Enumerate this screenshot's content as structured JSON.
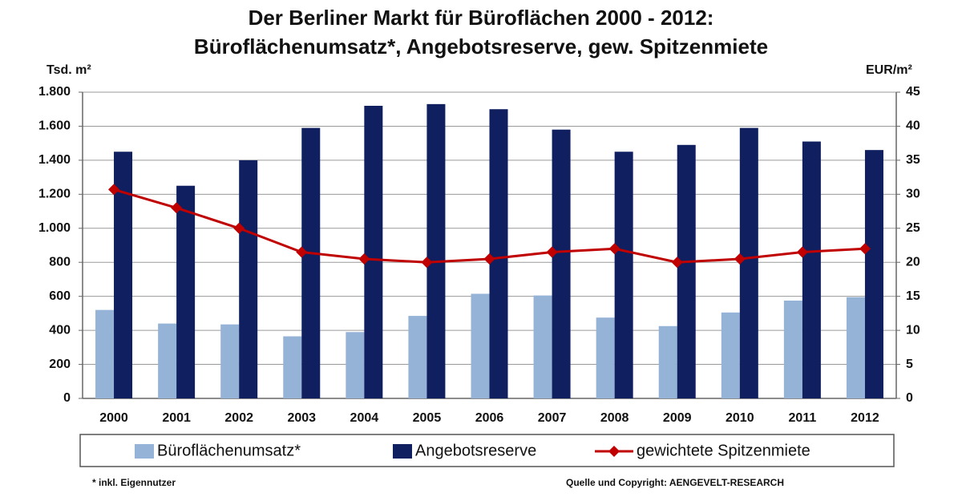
{
  "chart_data": {
    "type": "bar",
    "title": "Der Berliner Markt für Büroflächen 2000 - 2012:",
    "subtitle": "Büroflächenumsatz*, Angebotsreserve, gew. Spitzenmiete",
    "y_label": "Tsd. m²",
    "y2_label": "EUR/m²",
    "categories": [
      "2000",
      "2001",
      "2002",
      "2003",
      "2004",
      "2005",
      "2006",
      "2007",
      "2008",
      "2009",
      "2010",
      "2011",
      "2012"
    ],
    "series": [
      {
        "name": "Büroflächenumsatz*",
        "color": "#95b3d7",
        "values": [
          520,
          440,
          435,
          365,
          390,
          485,
          615,
          605,
          475,
          425,
          505,
          575,
          595
        ]
      },
      {
        "name": "Angebotsreserve",
        "color": "#0f1f5f",
        "values": [
          1450,
          1250,
          1400,
          1590,
          1720,
          1730,
          1700,
          1580,
          1450,
          1490,
          1590,
          1510,
          1460
        ]
      },
      {
        "name": "gewichtete Spitzenmiete",
        "color": "#c00000",
        "type": "line",
        "axis": "y2",
        "values": [
          30.7,
          28,
          25,
          21.5,
          20.5,
          20,
          20.5,
          21.5,
          22,
          20,
          20.5,
          21.5,
          22
        ]
      }
    ],
    "ylim": [
      0,
      1800
    ],
    "yticks": [
      0,
      200,
      400,
      600,
      800,
      {
        "value": 1000,
        "label": "1.000"
      },
      {
        "value": 1200,
        "label": "1.200"
      },
      {
        "value": 1400,
        "label": "1.400"
      },
      {
        "value": 1600,
        "label": "1.600"
      },
      {
        "value": 1800,
        "label": "1.800"
      }
    ],
    "y2lim": [
      0,
      45
    ],
    "y2ticks": [
      0,
      5,
      10,
      15,
      20,
      25,
      30,
      35,
      40,
      45
    ],
    "grid": true,
    "legend": "bottom",
    "footnote": "* inkl. Eigennutzer",
    "source": "Quelle und Copyright: AENGEVELT-RESEARCH"
  }
}
